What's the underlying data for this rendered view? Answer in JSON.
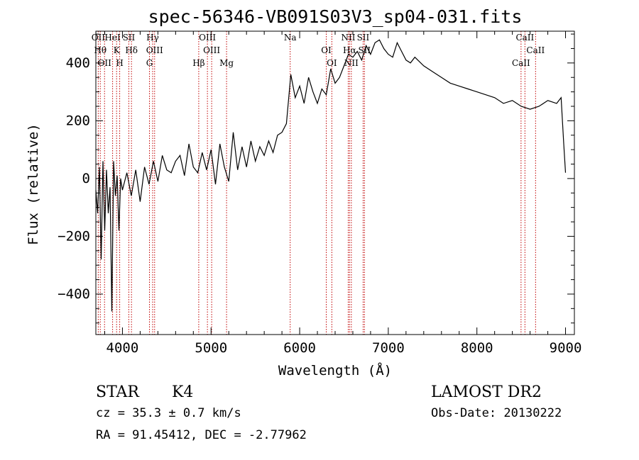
{
  "chart_data": {
    "type": "line",
    "title": "spec-56346-VB091S03V3_sp04-031.fits",
    "xlabel": "Wavelength (Å)",
    "ylabel": "Flux (relative)",
    "xlim": [
      3700,
      9100
    ],
    "ylim": [
      -540,
      510
    ],
    "x_ticks": [
      4000,
      5000,
      6000,
      7000,
      8000,
      9000
    ],
    "y_ticks": [
      -400,
      -200,
      0,
      200,
      400
    ],
    "grid": false,
    "series": [
      {
        "color": "#000000",
        "x": [
          3700,
          3720,
          3740,
          3760,
          3780,
          3800,
          3820,
          3840,
          3860,
          3880,
          3900,
          3920,
          3940,
          3960,
          3980,
          4000,
          4050,
          4100,
          4150,
          4200,
          4250,
          4300,
          4350,
          4400,
          4450,
          4500,
          4550,
          4600,
          4650,
          4700,
          4750,
          4800,
          4850,
          4900,
          4950,
          5000,
          5050,
          5100,
          5150,
          5200,
          5250,
          5300,
          5350,
          5400,
          5450,
          5500,
          5550,
          5600,
          5650,
          5700,
          5750,
          5800,
          5850,
          5900,
          5950,
          6000,
          6050,
          6100,
          6150,
          6200,
          6250,
          6300,
          6350,
          6400,
          6450,
          6500,
          6550,
          6600,
          6650,
          6700,
          6750,
          6800,
          6850,
          6900,
          6950,
          7000,
          7050,
          7100,
          7150,
          7200,
          7250,
          7300,
          7400,
          7500,
          7600,
          7700,
          7800,
          7900,
          8000,
          8100,
          8200,
          8300,
          8400,
          8500,
          8600,
          8700,
          8800,
          8900,
          8950,
          8980,
          9000
        ],
        "values": [
          -40,
          -120,
          40,
          -280,
          60,
          -180,
          30,
          -120,
          -30,
          -460,
          60,
          -60,
          10,
          -180,
          0,
          -40,
          20,
          -60,
          30,
          -80,
          40,
          -20,
          60,
          -10,
          80,
          30,
          20,
          60,
          80,
          10,
          120,
          40,
          20,
          90,
          30,
          100,
          -20,
          120,
          40,
          -10,
          160,
          30,
          110,
          40,
          130,
          60,
          110,
          80,
          130,
          90,
          150,
          160,
          190,
          360,
          280,
          320,
          260,
          350,
          300,
          260,
          310,
          290,
          380,
          330,
          350,
          390,
          430,
          420,
          440,
          410,
          460,
          430,
          470,
          480,
          450,
          430,
          420,
          470,
          440,
          410,
          400,
          420,
          390,
          370,
          350,
          330,
          320,
          310,
          300,
          290,
          280,
          260,
          270,
          250,
          240,
          250,
          270,
          260,
          280,
          120,
          20
        ]
      }
    ],
    "reference_lines": [
      {
        "x": 3727,
        "label": "OII"
      },
      {
        "x": 3750,
        "label": "Hθ"
      },
      {
        "x": 3798,
        "label": "OII"
      },
      {
        "x": 3889,
        "label": "HeI"
      },
      {
        "x": 3934,
        "label": "K"
      },
      {
        "x": 3969,
        "label": "H"
      },
      {
        "x": 4072,
        "label": "SII"
      },
      {
        "x": 4102,
        "label": "Hδ"
      },
      {
        "x": 4305,
        "label": "G"
      },
      {
        "x": 4341,
        "label": "Hγ"
      },
      {
        "x": 4363,
        "label": "OIII"
      },
      {
        "x": 4861,
        "label": "Hβ"
      },
      {
        "x": 4959,
        "label": "OIII"
      },
      {
        "x": 5007,
        "label": "OIII"
      },
      {
        "x": 5175,
        "label": "Mg"
      },
      {
        "x": 5893,
        "label": "Na"
      },
      {
        "x": 6300,
        "label": "OI"
      },
      {
        "x": 6363,
        "label": "OI"
      },
      {
        "x": 6548,
        "label": "NII"
      },
      {
        "x": 6563,
        "label": "Hα"
      },
      {
        "x": 6583,
        "label": "NII"
      },
      {
        "x": 6716,
        "label": "SII"
      },
      {
        "x": 6731,
        "label": "SII"
      },
      {
        "x": 8498,
        "label": "CaII"
      },
      {
        "x": 8542,
        "label": "CaII"
      },
      {
        "x": 8662,
        "label": "CaII"
      }
    ],
    "reference_line_color": "#c00000"
  },
  "info": {
    "class": "STAR",
    "subclass": "K4",
    "survey": "LAMOST DR2",
    "cz": "cz = 35.3 ± 0.7 km/s",
    "obs_date": "Obs-Date: 20130222",
    "coords": "RA =  91.45412, DEC =  -2.77962"
  }
}
